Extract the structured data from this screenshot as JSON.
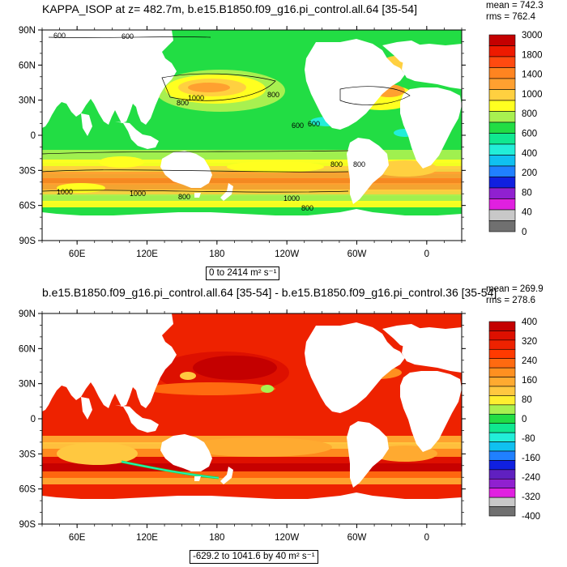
{
  "chart_data": [
    {
      "type": "heatmap",
      "title": "KAPPA_ISOP at z= 482.7m, b.e15.B1850.f09_g16.pi_control.all.64 [35-54]",
      "stats": {
        "mean": "mean = 742.3",
        "rms": "rms = 762.4"
      },
      "range_label": "0 to 2414 m² s⁻¹",
      "x_ticks": [
        "60E",
        "120E",
        "180",
        "120W",
        "60W",
        "0"
      ],
      "y_ticks": [
        "90N",
        "60N",
        "30N",
        "0",
        "30S",
        "60S",
        "90S"
      ],
      "colorbar_labels": [
        "3000",
        "1800",
        "1400",
        "1000",
        "800",
        "600",
        "400",
        "200",
        "80",
        "40",
        "0"
      ],
      "colorbar_colors": [
        "#c40000",
        "#ee1a00",
        "#ff4a10",
        "#ff8420",
        "#ffa030",
        "#ffd040",
        "#ffff20",
        "#a8f050",
        "#22dd44",
        "#10e890",
        "#22eed8",
        "#10c0f0",
        "#2080ff",
        "#1020e0",
        "#9020d0",
        "#e020e0",
        "#c8c8c8",
        "#707070"
      ],
      "contour_labels": [
        "600",
        "600",
        "1000",
        "800",
        "800",
        "600",
        "600",
        "800",
        "800",
        "1000",
        "1000",
        "800",
        "1000",
        "800"
      ]
    },
    {
      "type": "heatmap",
      "title": "b.e15.B1850.f09_g16.pi_control.all.64 [35-54] - b.e15.B1850.f09_g16.pi_control.36 [35-54]",
      "stats": {
        "mean": "mean = 269.9",
        "rms": "rms = 278.6"
      },
      "range_label": "-629.2 to 1041.6 by 40 m² s⁻¹",
      "x_ticks": [
        "60E",
        "120E",
        "180",
        "120W",
        "60W",
        "0"
      ],
      "y_ticks": [
        "90N",
        "60N",
        "30N",
        "0",
        "30S",
        "60S",
        "90S"
      ],
      "colorbar_labels": [
        "400",
        "320",
        "240",
        "160",
        "80",
        "0",
        "-80",
        "-160",
        "-240",
        "-320",
        "-400"
      ],
      "colorbar_colors": [
        "#c40000",
        "#dd1000",
        "#ee2200",
        "#ff3a00",
        "#ff6a10",
        "#ff9020",
        "#ffaa30",
        "#ffc840",
        "#ffee30",
        "#a8f050",
        "#22dd44",
        "#10e890",
        "#22eed8",
        "#10c0f0",
        "#2080ff",
        "#1020e0",
        "#6020c0",
        "#9020d0",
        "#e020e0",
        "#c8c8c8",
        "#707070"
      ]
    }
  ]
}
